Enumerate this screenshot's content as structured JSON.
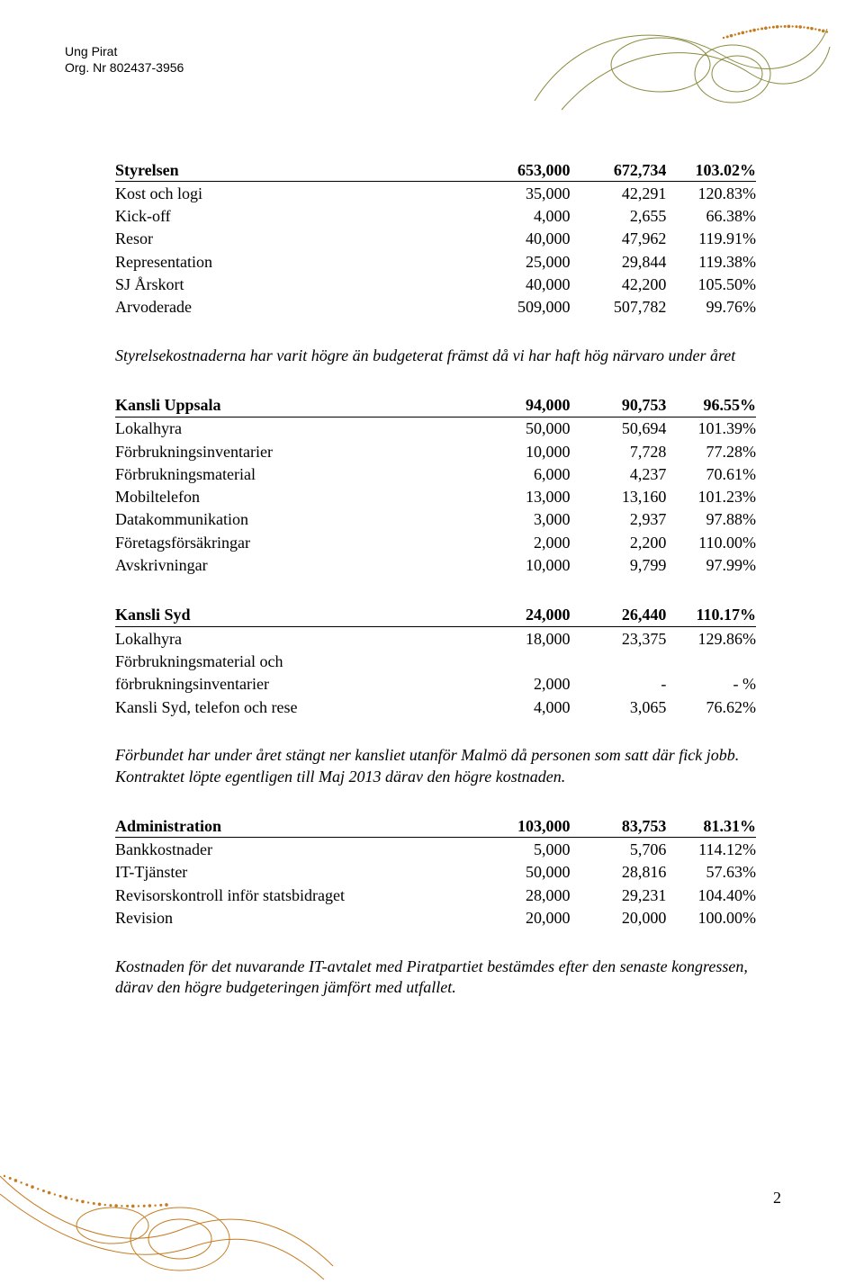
{
  "header": {
    "org_name": "Ung Pirat",
    "org_nr": "Org. Nr 802437-3956"
  },
  "decor": {
    "top_stroke": "#8a8a3e",
    "top_dots": "#c57b1f",
    "bottom_stroke": "#c57b1f",
    "bottom_dots": "#c57b1f"
  },
  "sections": [
    {
      "rows": [
        {
          "label": "Styrelsen",
          "col1": "653,000",
          "col2": "672,734",
          "col3": "103.02%",
          "header": true
        },
        {
          "label": "Kost och logi",
          "col1": "35,000",
          "col2": "42,291",
          "col3": "120.83%"
        },
        {
          "label": "Kick-off",
          "col1": "4,000",
          "col2": "2,655",
          "col3": "66.38%"
        },
        {
          "label": "Resor",
          "col1": "40,000",
          "col2": "47,962",
          "col3": "119.91%"
        },
        {
          "label": "Representation",
          "col1": "25,000",
          "col2": "29,844",
          "col3": "119.38%"
        },
        {
          "label": "SJ Årskort",
          "col1": "40,000",
          "col2": "42,200",
          "col3": "105.50%"
        },
        {
          "label": "Arvoderade",
          "col1": "509,000",
          "col2": "507,782",
          "col3": "99.76%"
        }
      ],
      "note": "Styrelsekostnaderna har varit högre än budgeterat främst då vi har haft hög närvaro under året"
    },
    {
      "rows": [
        {
          "label": "Kansli Uppsala",
          "col1": "94,000",
          "col2": "90,753",
          "col3": "96.55%",
          "header": true
        },
        {
          "label": "Lokalhyra",
          "col1": "50,000",
          "col2": "50,694",
          "col3": "101.39%"
        },
        {
          "label": "Förbrukningsinventarier",
          "col1": "10,000",
          "col2": "7,728",
          "col3": "77.28%"
        },
        {
          "label": "Förbrukningsmaterial",
          "col1": "6,000",
          "col2": "4,237",
          "col3": "70.61%"
        },
        {
          "label": "Mobiltelefon",
          "col1": "13,000",
          "col2": "13,160",
          "col3": "101.23%"
        },
        {
          "label": "Datakommunikation",
          "col1": "3,000",
          "col2": "2,937",
          "col3": "97.88%"
        },
        {
          "label": "Företagsförsäkringar",
          "col1": "2,000",
          "col2": "2,200",
          "col3": "110.00%"
        },
        {
          "label": "Avskrivningar",
          "col1": "10,000",
          "col2": "9,799",
          "col3": "97.99%"
        }
      ]
    },
    {
      "rows": [
        {
          "label": "Kansli Syd",
          "col1": "24,000",
          "col2": "26,440",
          "col3": "110.17%",
          "header": true
        },
        {
          "label": "Lokalhyra",
          "col1": "18,000",
          "col2": "23,375",
          "col3": "129.86%"
        },
        {
          "label": "Förbrukningsmaterial och",
          "col1": "",
          "col2": "",
          "col3": ""
        },
        {
          "label": "förbrukningsinventarier",
          "col1": "2,000",
          "col2": "-",
          "col3": "- %"
        },
        {
          "label": "Kansli Syd, telefon och rese",
          "col1": "4,000",
          "col2": "3,065",
          "col3": "76.62%"
        }
      ],
      "note": "Förbundet har under året stängt ner kansliet utanför Malmö då personen som satt där fick jobb. Kontraktet löpte egentligen till Maj 2013 därav den högre kostnaden."
    },
    {
      "rows": [
        {
          "label": "Administration",
          "col1": "103,000",
          "col2": "83,753",
          "col3": "81.31%",
          "header": true
        },
        {
          "label": "Bankkostnader",
          "col1": "5,000",
          "col2": "5,706",
          "col3": "114.12%"
        },
        {
          "label": "IT-Tjänster",
          "col1": "50,000",
          "col2": "28,816",
          "col3": "57.63%"
        },
        {
          "label": "Revisorskontroll inför statsbidraget",
          "col1": "28,000",
          "col2": "29,231",
          "col3": "104.40%"
        },
        {
          "label": "Revision",
          "col1": "20,000",
          "col2": "20,000",
          "col3": "100.00%"
        }
      ],
      "note": "Kostnaden för det nuvarande IT-avtalet med Piratpartiet bestämdes efter den senaste kongressen, därav den högre budgeteringen jämfört med utfallet."
    }
  ],
  "page_number": "2"
}
